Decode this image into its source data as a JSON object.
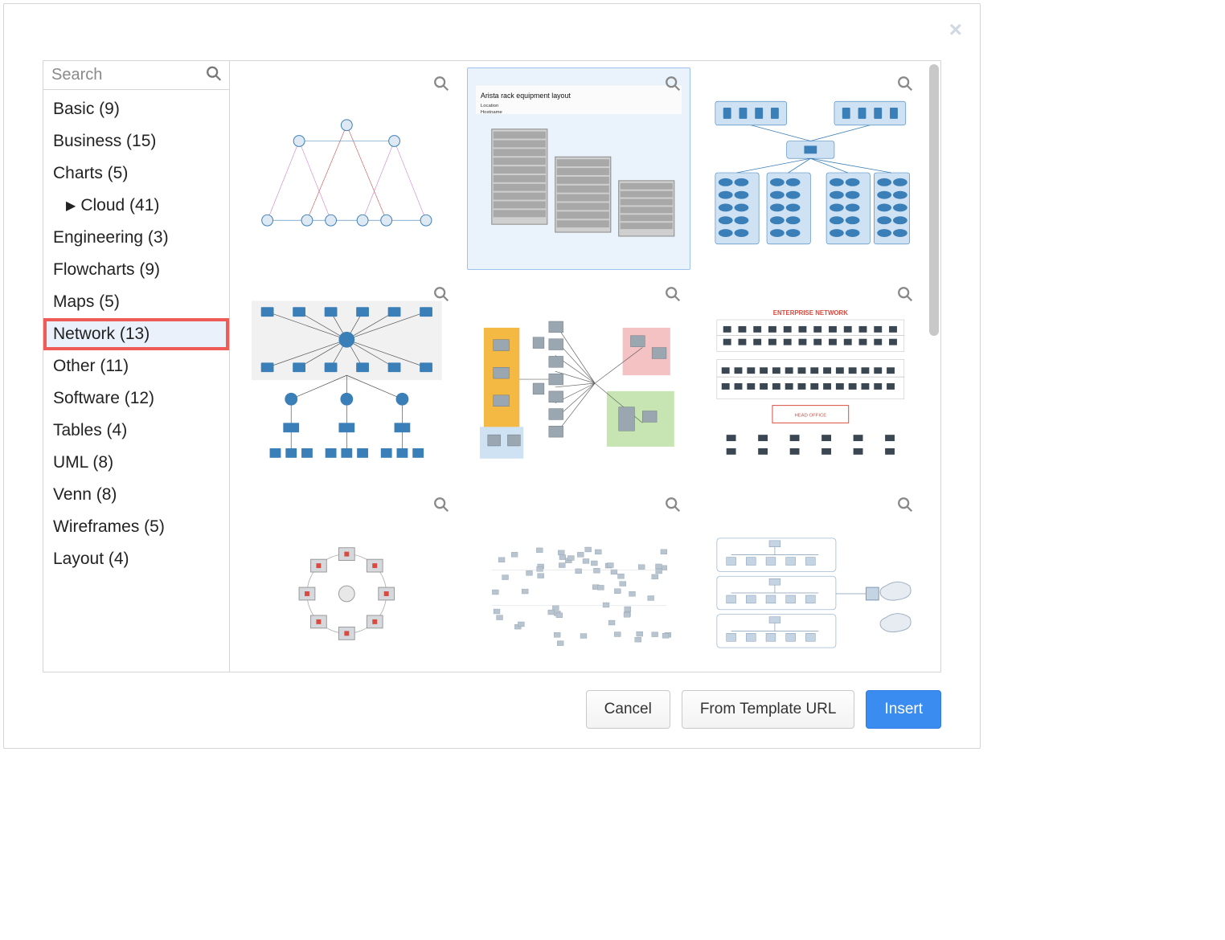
{
  "dialog": {
    "search_placeholder": "Search",
    "close_label": "×"
  },
  "sidebar": {
    "categories": [
      {
        "label": "Basic (9)",
        "expandable": false,
        "selected": false
      },
      {
        "label": "Business (15)",
        "expandable": false,
        "selected": false
      },
      {
        "label": "Charts (5)",
        "expandable": false,
        "selected": false
      },
      {
        "label": "Cloud (41)",
        "expandable": true,
        "selected": false
      },
      {
        "label": "Engineering (3)",
        "expandable": false,
        "selected": false
      },
      {
        "label": "Flowcharts (9)",
        "expandable": false,
        "selected": false
      },
      {
        "label": "Maps (5)",
        "expandable": false,
        "selected": false
      },
      {
        "label": "Network (13)",
        "expandable": false,
        "selected": true,
        "highlighted": true
      },
      {
        "label": "Other (11)",
        "expandable": false,
        "selected": false
      },
      {
        "label": "Software (12)",
        "expandable": false,
        "selected": false
      },
      {
        "label": "Tables (4)",
        "expandable": false,
        "selected": false
      },
      {
        "label": "UML (8)",
        "expandable": false,
        "selected": false
      },
      {
        "label": "Venn (8)",
        "expandable": false,
        "selected": false
      },
      {
        "label": "Wireframes (5)",
        "expandable": false,
        "selected": false
      },
      {
        "label": "Layout (4)",
        "expandable": false,
        "selected": false
      }
    ]
  },
  "gallery": {
    "selected_index": 1,
    "tiles": [
      {
        "name": "template-network-topology-triangles",
        "selected": false,
        "thumb_type": "triangles"
      },
      {
        "name": "template-arista-rack-layout",
        "selected": true,
        "thumb_type": "rack",
        "caption": "Arista rack equipment layout"
      },
      {
        "name": "template-network-hierarchy-blue",
        "selected": false,
        "thumb_type": "hier_blue"
      },
      {
        "name": "template-network-cisco-topology",
        "selected": false,
        "thumb_type": "cisco"
      },
      {
        "name": "template-network-architecture-colored",
        "selected": false,
        "thumb_type": "colored_zones"
      },
      {
        "name": "template-enterprise-network",
        "selected": false,
        "thumb_type": "enterprise",
        "caption": "ENTERPRISE NETWORK"
      },
      {
        "name": "template-network-ring",
        "selected": false,
        "thumb_type": "ring"
      },
      {
        "name": "template-network-dots",
        "selected": false,
        "thumb_type": "dots"
      },
      {
        "name": "template-network-lan-segments",
        "selected": false,
        "thumb_type": "lan"
      }
    ]
  },
  "footer": {
    "cancel": "Cancel",
    "from_url": "From Template URL",
    "insert": "Insert"
  },
  "colors": {
    "selected_tile_border": "#9ec3f0",
    "selected_tile_bg": "#eaf2fb",
    "highlight_border": "#ef5b56",
    "primary_btn": "#3b8cf0",
    "scrollbar": "#c8c8c8",
    "icon_gray": "#888888",
    "node_blue": "#3b7fb8",
    "node_dark": "#2b4d6b",
    "light_blue_fill": "#cfe2f3",
    "rack_gray": "#8f8f8f",
    "zone_yellow": "#f4b942",
    "zone_pink": "#f4c2c2",
    "zone_green": "#c6e5b3",
    "zone_blue": "#cfe2f3",
    "red_accent": "#d94a3f"
  }
}
